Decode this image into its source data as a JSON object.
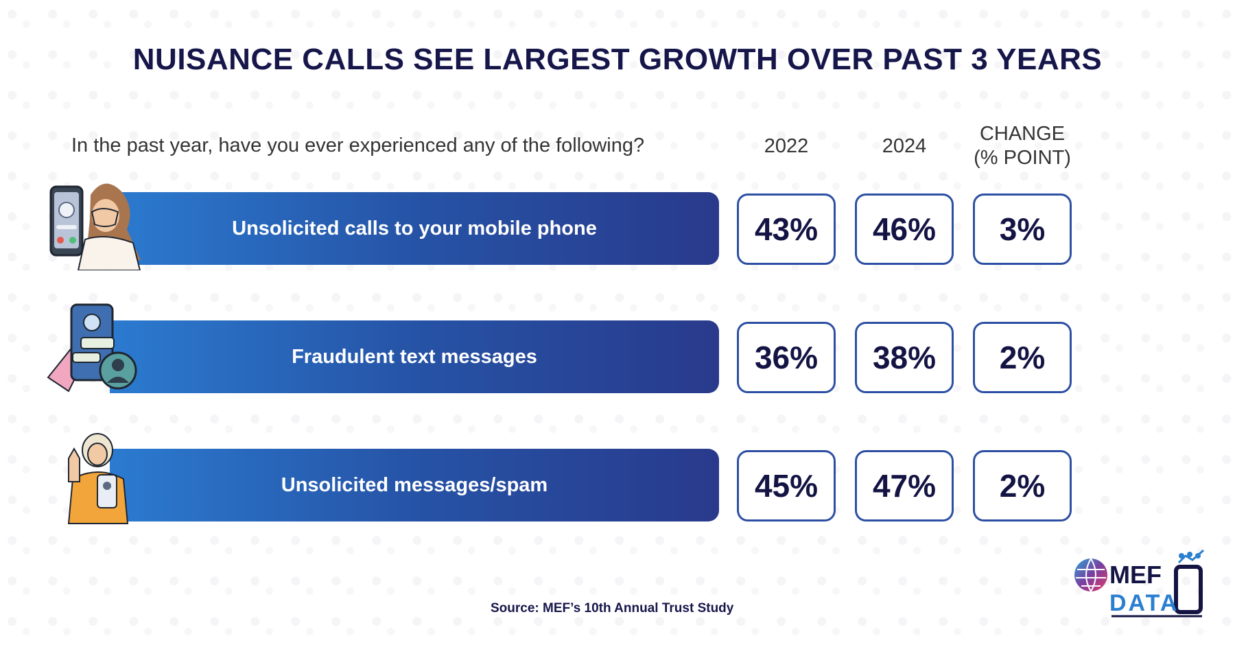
{
  "chart_data": {
    "type": "table",
    "title": "NUISANCE CALLS SEE LARGEST GROWTH OVER PAST 3 YEARS",
    "question": "In the past year, have you ever experienced any of the following?",
    "columns": [
      "2022",
      "2024",
      "CHANGE\n(% POINT)"
    ],
    "rows": [
      {
        "label": "Unsolicited calls to your mobile phone",
        "values": [
          "43%",
          "46%",
          "3%"
        ],
        "icon": "woman-covering-face-with-unknown-caller-phone"
      },
      {
        "label": "Fraudulent text messages",
        "values": [
          "36%",
          "38%",
          "2%"
        ],
        "icon": "phone-with-hacker-chat-bubbles"
      },
      {
        "label": "Unsolicited messages/spam",
        "values": [
          "45%",
          "47%",
          "2%"
        ],
        "icon": "woman-raising-hand-holding-phone"
      }
    ]
  },
  "source": "Source: MEF’s 10th Annual Trust Study",
  "logo": {
    "line1": "MEF",
    "line2": "DATA"
  },
  "colors": {
    "title": "#16164a",
    "bar_start": "#2b7bd0",
    "bar_end": "#293a8c",
    "box_border": "#2d4fa3"
  }
}
